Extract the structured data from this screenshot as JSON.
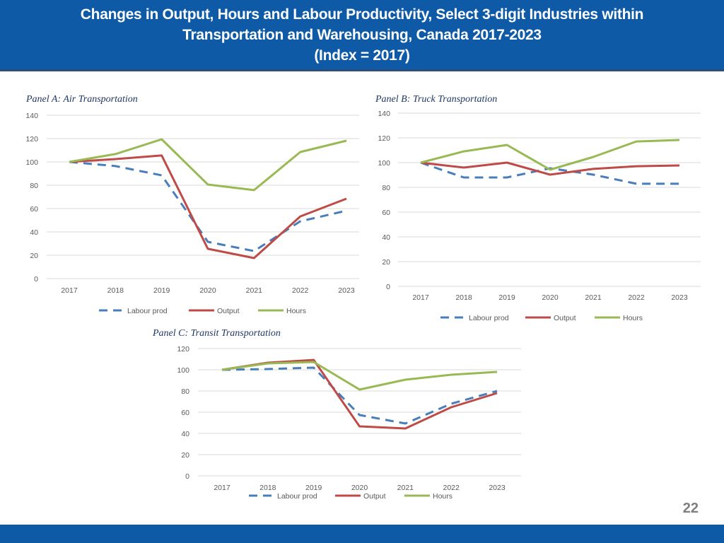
{
  "slide": {
    "title_lines": [
      "Changes in Output, Hours and Labour Productivity, Select 3-digit Industries within",
      "Transportation and Warehousing, Canada 2017-2023",
      "(Index = 2017)"
    ],
    "page_number": "22",
    "colors": {
      "header_bar": "#0E5AA7",
      "labour_prod": "#4A7EBB",
      "output": "#BE4B48",
      "hours": "#98B954"
    }
  },
  "chart_data": [
    {
      "type": "line",
      "title": "Panel A: Air Transportation",
      "xlabel": "",
      "ylabel": "",
      "categories": [
        "2017",
        "2018",
        "2019",
        "2020",
        "2021",
        "2022",
        "2023"
      ],
      "ylim": [
        0,
        140
      ],
      "yticks": [
        0,
        20,
        40,
        60,
        80,
        100,
        120,
        140
      ],
      "grid": true,
      "legend": "bottom",
      "series": [
        {
          "name": "Labour prod",
          "style": "dashed",
          "color": "#4A7EBB",
          "values": [
            100,
            96.4,
            88.5,
            31.5,
            23.6,
            49.1,
            58.2
          ]
        },
        {
          "name": "Output",
          "style": "solid",
          "color": "#BE4B48",
          "values": [
            100,
            102.4,
            105.5,
            25.5,
            17.6,
            53.3,
            68.5
          ]
        },
        {
          "name": "Hours",
          "style": "solid",
          "color": "#98B954",
          "values": [
            100,
            106.7,
            119.4,
            80.6,
            75.8,
            108.5,
            118.2
          ]
        }
      ]
    },
    {
      "type": "line",
      "title": "Panel B: Truck Transportation",
      "xlabel": "",
      "ylabel": "",
      "categories": [
        "2017",
        "2018",
        "2019",
        "2020",
        "2021",
        "2022",
        "2023"
      ],
      "ylim": [
        0,
        140
      ],
      "yticks": [
        0,
        20,
        40,
        60,
        80,
        100,
        120,
        140
      ],
      "grid": true,
      "legend": "bottom",
      "series": [
        {
          "name": "Labour prod",
          "style": "dashed",
          "color": "#4A7EBB",
          "values": [
            100,
            88.0,
            88.0,
            95.4,
            90.3,
            82.9,
            82.9
          ]
        },
        {
          "name": "Output",
          "style": "solid",
          "color": "#BE4B48",
          "values": [
            100,
            96.0,
            100.0,
            90.3,
            94.9,
            97.1,
            97.7
          ]
        },
        {
          "name": "Hours",
          "style": "solid",
          "color": "#98B954",
          "values": [
            100,
            109.1,
            114.3,
            94.3,
            104.6,
            117.1,
            118.3
          ]
        }
      ]
    },
    {
      "type": "line",
      "title": "Panel C: Transit Transportation",
      "xlabel": "",
      "ylabel": "",
      "categories": [
        "2017",
        "2018",
        "2019",
        "2020",
        "2021",
        "2022",
        "2023"
      ],
      "ylim": [
        0,
        120
      ],
      "yticks": [
        0,
        20,
        40,
        60,
        80,
        100,
        120
      ],
      "grid": true,
      "legend": "bottom",
      "series": [
        {
          "name": "Labour prod",
          "style": "dashed",
          "color": "#4A7EBB",
          "values": [
            100,
            100.7,
            102.0,
            57.3,
            49.3,
            68.0,
            80.0
          ]
        },
        {
          "name": "Output",
          "style": "solid",
          "color": "#BE4B48",
          "values": [
            100,
            106.7,
            109.3,
            46.7,
            44.7,
            64.7,
            78.0
          ]
        },
        {
          "name": "Hours",
          "style": "solid",
          "color": "#98B954",
          "values": [
            100,
            106.0,
            107.3,
            81.3,
            90.7,
            95.3,
            98.0
          ]
        }
      ]
    }
  ]
}
